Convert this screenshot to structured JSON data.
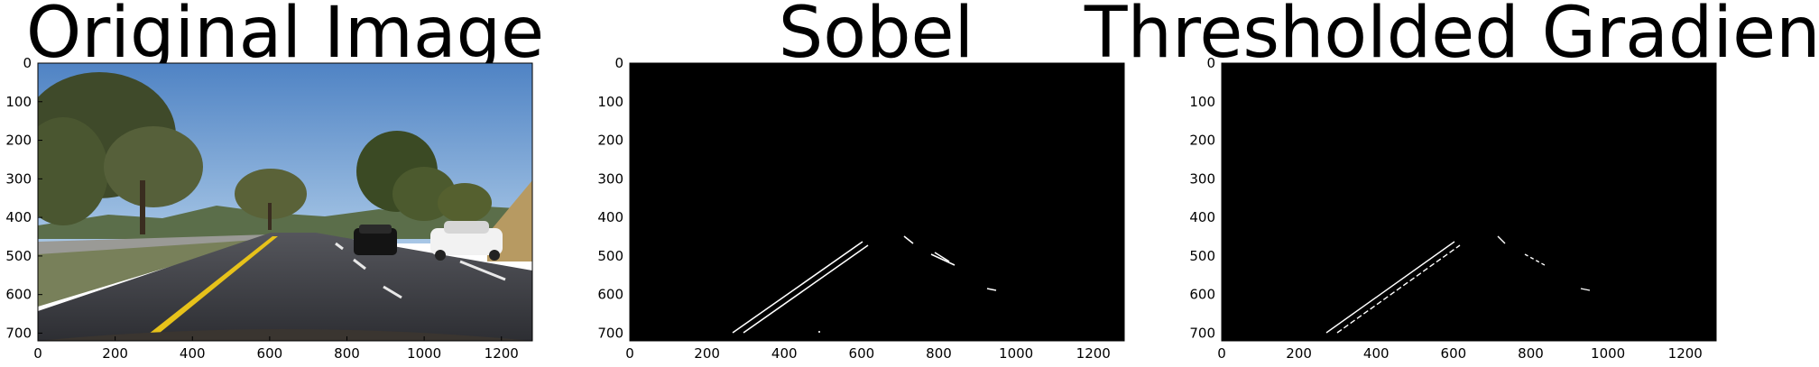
{
  "figure": {
    "panels": [
      {
        "title": "Original Image",
        "kind": "photo",
        "x_ticks": [
          "0",
          "200",
          "400",
          "600",
          "800",
          "1000",
          "1200"
        ],
        "y_ticks": [
          "0",
          "100",
          "200",
          "300",
          "400",
          "500",
          "600",
          "700"
        ],
        "x_range": [
          0,
          1280
        ],
        "y_range": [
          0,
          720
        ]
      },
      {
        "title": "Sobel",
        "kind": "binary",
        "x_ticks": [
          "0",
          "200",
          "400",
          "600",
          "800",
          "1000",
          "1200"
        ],
        "y_ticks": [
          "0",
          "100",
          "200",
          "300",
          "400",
          "500",
          "600",
          "700"
        ],
        "x_range": [
          0,
          1280
        ],
        "y_range": [
          0,
          720
        ]
      },
      {
        "title": "Thresholded Gradient",
        "kind": "binary",
        "x_ticks": [
          "0",
          "200",
          "400",
          "600",
          "800",
          "1000",
          "1200"
        ],
        "y_ticks": [
          "0",
          "100",
          "200",
          "300",
          "400",
          "500",
          "600",
          "700"
        ],
        "x_range": [
          0,
          1280
        ],
        "y_range": [
          0,
          720
        ]
      }
    ],
    "colors": {
      "sky": "#6a9ad0",
      "road": "#3c3d44",
      "lane_yellow": "#e7c21a",
      "binary_bg": "#000000",
      "edge": "#ffffff"
    }
  }
}
